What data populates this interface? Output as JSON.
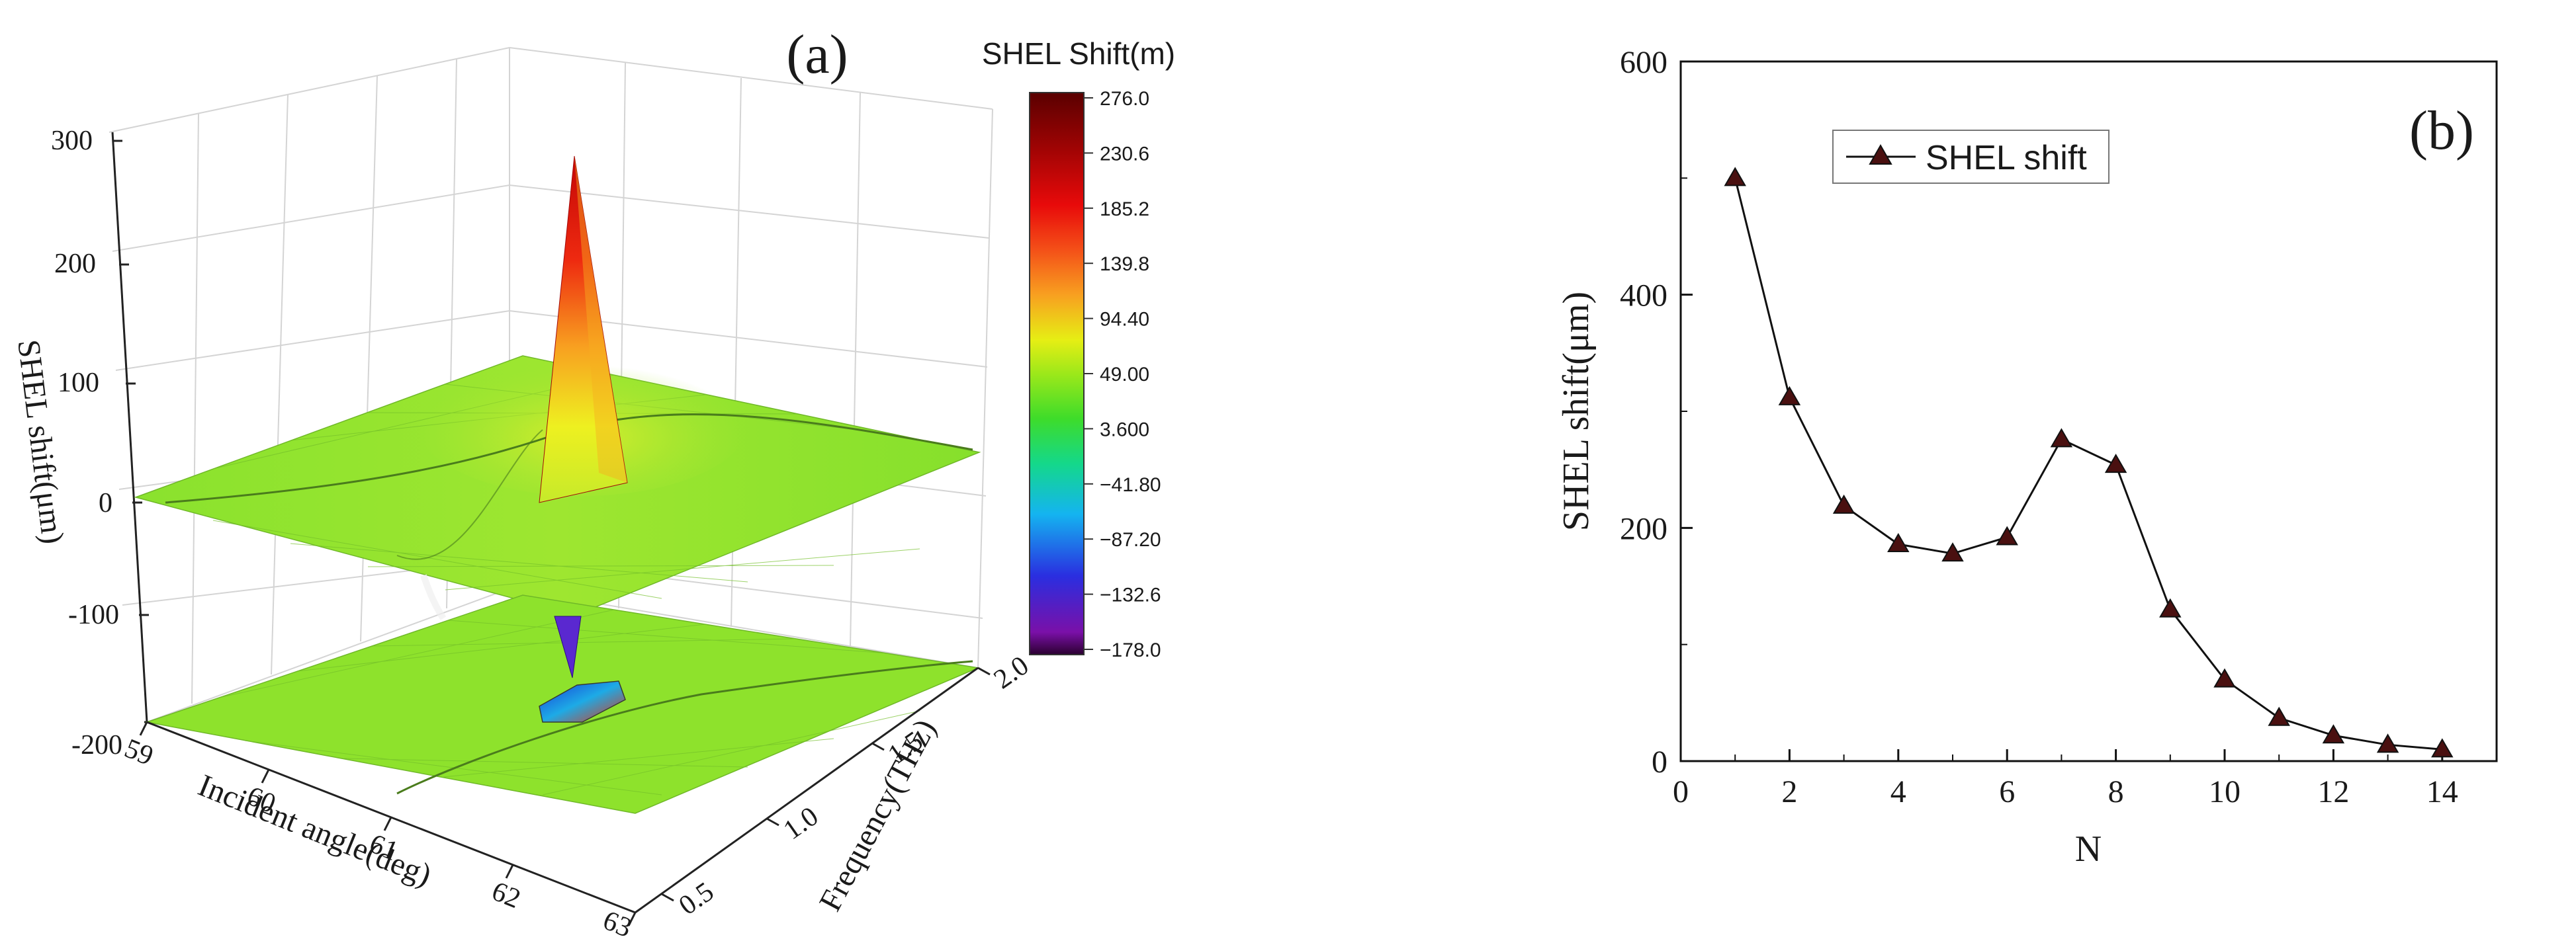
{
  "chart_data": [
    {
      "type": "surface3d",
      "panel_label": "(a)",
      "title": "",
      "xlabel": "Incident angle(deg)",
      "ylabel": "Frequency(THz)",
      "zlabel": "SHEL shift(μm)",
      "x_ticks": [
        "59",
        "60",
        "61",
        "62",
        "63"
      ],
      "y_ticks": [
        "0.5",
        "1.0",
        "1.5",
        "2.0"
      ],
      "z_ticks": [
        "-200",
        "-100",
        "0",
        "100",
        "200",
        "300"
      ],
      "xlim": [
        59,
        63
      ],
      "ylim": [
        0.5,
        2.0
      ],
      "zlim": [
        -200,
        300
      ],
      "surfaces": [
        {
          "name": "upper sheet",
          "base_value": 0,
          "peak": {
            "incident_angle": 60.6,
            "frequency": 1.7,
            "value": 276.0
          }
        },
        {
          "name": "lower sheet",
          "base_value": -200,
          "dip": {
            "incident_angle": 61.2,
            "frequency": 1.5,
            "value": -178.0
          }
        }
      ],
      "colorbar": {
        "title": "SHEL Shift(m)",
        "labels": [
          "276.0",
          "230.6",
          "185.2",
          "139.8",
          "94.40",
          "49.00",
          "3.600",
          "−41.80",
          "−87.20",
          "−132.6",
          "−178.0"
        ],
        "min": -178.0,
        "max": 276.0
      }
    },
    {
      "type": "line",
      "panel_label": "(b)",
      "title": "",
      "xlabel": "N",
      "ylabel": "SHEL shift(μm)",
      "x_ticks": [
        "0",
        "2",
        "4",
        "6",
        "8",
        "10",
        "12",
        "14"
      ],
      "y_ticks": [
        "0",
        "200",
        "400",
        "600"
      ],
      "xlim": [
        0,
        15
      ],
      "ylim": [
        0,
        600
      ],
      "legend": {
        "position": "top-left"
      },
      "series": [
        {
          "name": "SHEL shift",
          "marker": "triangle",
          "color": "#4a1010",
          "x": [
            1,
            2,
            3,
            4,
            5,
            6,
            7,
            8,
            9,
            10,
            11,
            12,
            13,
            14
          ],
          "values": [
            500,
            312,
            219,
            186,
            178,
            192,
            276,
            254,
            130,
            70,
            37,
            22,
            14,
            10
          ]
        }
      ]
    }
  ]
}
